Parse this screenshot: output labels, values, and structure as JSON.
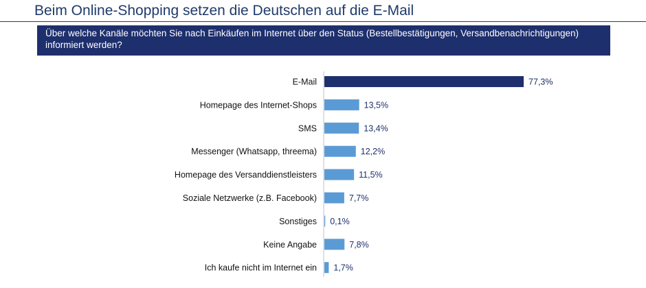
{
  "header": {
    "title": "Beim Online-Shopping setzen die Deutschen auf die E-Mail",
    "question": "Über welche Kanäle möchten Sie nach Einkäufen im Internet über den Status (Bestellbestätigungen, Versandbenachrichtigungen) informiert werden?"
  },
  "colors": {
    "highlight": "#1e2f6d",
    "bar": "#5b9bd5",
    "axis": "#bfbfbf"
  },
  "chart_data": {
    "type": "bar",
    "orientation": "horizontal",
    "categories": [
      "E-Mail",
      "Homepage des Internet-Shops",
      "SMS",
      "Messenger (Whatsapp, threema)",
      "Homepage des Versanddienstleisters",
      "Soziale Netzwerke (z.B. Facebook)",
      "Sonstiges",
      "Keine Angabe",
      "Ich kaufe nicht im Internet ein"
    ],
    "values": [
      77.3,
      13.5,
      13.4,
      12.2,
      11.5,
      7.7,
      0.1,
      7.8,
      1.7
    ],
    "labels": [
      "77,3%",
      "13,5%",
      "13,4%",
      "12,2%",
      "11,5%",
      "7,7%",
      "0,1%",
      "7,8%",
      "1,7%"
    ],
    "highlight_index": 0,
    "xlim": [
      0,
      100
    ],
    "grid": false,
    "legend": "none"
  }
}
